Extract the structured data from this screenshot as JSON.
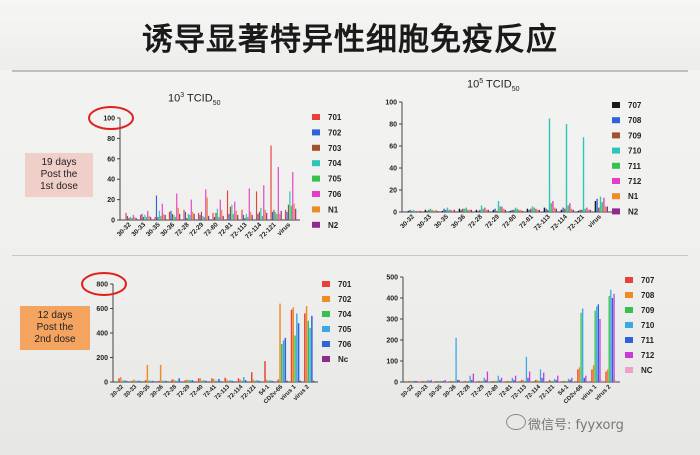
{
  "title": "诱导显著特异性细胞免疫反应",
  "panels": [
    {
      "subtitle_base": "10",
      "subtitle_sup": "3",
      "subtitle_text": " TCID",
      "subtitle_sub": "50"
    },
    {
      "subtitle_base": "10",
      "subtitle_sup": "5",
      "subtitle_text": " TCID",
      "subtitle_sub": "50"
    }
  ],
  "notes": [
    {
      "line1": "19 days",
      "line2": "Post the",
      "line3": "1st dose"
    },
    {
      "line1": "12 days",
      "line2": "Post the",
      "line3": "2nd dose"
    }
  ],
  "watermark": "微信号: fyyxorg",
  "chart_data": [
    {
      "type": "bar",
      "ylim": [
        0,
        100
      ],
      "yticks": [
        0,
        20,
        40,
        60,
        80,
        100
      ],
      "highlighted_tick": "100",
      "categories": [
        "30-32",
        "30-33",
        "30-35",
        "30-36",
        "72-28",
        "72-29",
        "72-80",
        "72-81",
        "72-113",
        "72-114",
        "72-121",
        "virus"
      ],
      "series": [
        {
          "name": "701",
          "color": "#e8413a",
          "values": [
            7,
            5,
            3,
            8,
            10,
            7,
            7,
            29,
            10,
            28,
            73,
            10
          ]
        },
        {
          "name": "702",
          "color": "#2f62d8",
          "values": [
            4,
            6,
            24,
            9,
            8,
            5,
            3,
            6,
            5,
            6,
            8,
            8
          ]
        },
        {
          "name": "703",
          "color": "#a0522d",
          "values": [
            2,
            3,
            3,
            6,
            2,
            8,
            7,
            13,
            2,
            8,
            10,
            15
          ]
        },
        {
          "name": "704",
          "color": "#2ec4b6",
          "values": [
            3,
            5,
            9,
            5,
            6,
            4,
            11,
            15,
            6,
            12,
            8,
            28
          ]
        },
        {
          "name": "705",
          "color": "#36c04c",
          "values": [
            2,
            3,
            4,
            3,
            5,
            3,
            3,
            6,
            3,
            4,
            6,
            14
          ]
        },
        {
          "name": "706",
          "color": "#e43dc8",
          "values": [
            5,
            9,
            16,
            26,
            20,
            30,
            20,
            18,
            31,
            34,
            52,
            47
          ]
        },
        {
          "name": "N1",
          "color": "#f08a24",
          "values": [
            3,
            4,
            6,
            12,
            8,
            22,
            10,
            9,
            8,
            10,
            6,
            16
          ]
        },
        {
          "name": "N2",
          "color": "#8e2c8c",
          "values": [
            2,
            3,
            5,
            6,
            6,
            4,
            4,
            5,
            5,
            7,
            9,
            11
          ]
        }
      ]
    },
    {
      "type": "bar",
      "ylim": [
        0,
        100
      ],
      "yticks": [
        0,
        20,
        40,
        60,
        80,
        100
      ],
      "categories": [
        "30-32",
        "30-33",
        "30-35",
        "30-36",
        "72-28",
        "72-29",
        "72-80",
        "72-81",
        "72-113",
        "72-114",
        "72-121",
        "virus"
      ],
      "series": [
        {
          "name": "707",
          "color": "#1a1a1a",
          "values": [
            1,
            2,
            1,
            3,
            2,
            2,
            1,
            3,
            4,
            2,
            1,
            10
          ]
        },
        {
          "name": "708",
          "color": "#2f62d8",
          "values": [
            2,
            1,
            3,
            2,
            1,
            3,
            2,
            2,
            3,
            4,
            2,
            12
          ]
        },
        {
          "name": "709",
          "color": "#a0522d",
          "values": [
            1,
            2,
            2,
            3,
            2,
            1,
            2,
            3,
            2,
            3,
            2,
            4
          ]
        },
        {
          "name": "710",
          "color": "#2ec4b6",
          "values": [
            2,
            3,
            4,
            3,
            6,
            10,
            4,
            5,
            85,
            80,
            68,
            14
          ]
        },
        {
          "name": "711",
          "color": "#36c04c",
          "values": [
            1,
            2,
            2,
            4,
            3,
            5,
            3,
            4,
            8,
            6,
            3,
            9
          ]
        },
        {
          "name": "712",
          "color": "#e43dc8",
          "values": [
            1,
            1,
            2,
            2,
            4,
            5,
            2,
            3,
            10,
            8,
            4,
            13
          ]
        },
        {
          "name": "N1",
          "color": "#f08a24",
          "values": [
            1,
            2,
            1,
            2,
            2,
            3,
            2,
            2,
            4,
            3,
            2,
            5
          ]
        },
        {
          "name": "N2",
          "color": "#8e2c8c",
          "values": [
            1,
            1,
            2,
            2,
            2,
            2,
            1,
            2,
            3,
            2,
            2,
            5
          ]
        }
      ]
    },
    {
      "type": "bar",
      "ylim": [
        0,
        800
      ],
      "yticks": [
        0,
        200,
        400,
        600,
        800
      ],
      "highlighted_tick": "800",
      "categories": [
        "30-32",
        "30-33",
        "30-35",
        "30-36",
        "72-28",
        "72-29",
        "72-40",
        "72-41",
        "72-113",
        "72-114",
        "72-121",
        "54-1",
        "CD2v-66",
        "virus 1",
        "virus 2"
      ],
      "series": [
        {
          "name": "701",
          "color": "#e8413a",
          "values": [
            30,
            10,
            15,
            10,
            20,
            15,
            30,
            30,
            35,
            30,
            80,
            170,
            20,
            590,
            560
          ]
        },
        {
          "name": "702",
          "color": "#f08a24",
          "values": [
            40,
            20,
            140,
            140,
            20,
            20,
            30,
            25,
            20,
            20,
            20,
            20,
            640,
            610,
            620
          ]
        },
        {
          "name": "704",
          "color": "#36c04c",
          "values": [
            10,
            10,
            10,
            10,
            10,
            15,
            10,
            10,
            10,
            10,
            10,
            10,
            310,
            380,
            500
          ]
        },
        {
          "name": "705",
          "color": "#3aa8e8",
          "values": [
            15,
            10,
            10,
            10,
            10,
            15,
            15,
            10,
            15,
            40,
            15,
            15,
            340,
            560,
            440
          ]
        },
        {
          "name": "706",
          "color": "#2f62d8",
          "values": [
            10,
            10,
            10,
            10,
            30,
            15,
            10,
            25,
            10,
            15,
            10,
            10,
            360,
            480,
            540
          ]
        },
        {
          "name": "Nc",
          "color": "#8e2c8c",
          "values": [
            5,
            5,
            5,
            5,
            5,
            5,
            5,
            5,
            5,
            5,
            5,
            5,
            10,
            10,
            10
          ]
        }
      ]
    },
    {
      "type": "bar",
      "ylim": [
        0,
        500
      ],
      "yticks": [
        0,
        100,
        200,
        300,
        400,
        500
      ],
      "categories": [
        "30-32",
        "30-33",
        "30-35",
        "30-36",
        "72-28",
        "72-29",
        "72-80",
        "72-81",
        "72-113",
        "72-114",
        "72-121",
        "54-1",
        "CD2v-66",
        "virus 1",
        "virus 2"
      ],
      "series": [
        {
          "name": "707",
          "color": "#e8413a",
          "values": [
            5,
            5,
            5,
            5,
            5,
            5,
            5,
            5,
            10,
            10,
            10,
            5,
            60,
            60,
            50
          ]
        },
        {
          "name": "708",
          "color": "#f08a24",
          "values": [
            5,
            5,
            5,
            5,
            5,
            5,
            5,
            5,
            10,
            10,
            5,
            5,
            70,
            80,
            60
          ]
        },
        {
          "name": "709",
          "color": "#36c04c",
          "values": [
            5,
            5,
            5,
            5,
            5,
            5,
            5,
            5,
            5,
            5,
            5,
            5,
            330,
            340,
            410
          ]
        },
        {
          "name": "710",
          "color": "#3aa8e8",
          "values": [
            5,
            10,
            5,
            210,
            30,
            20,
            30,
            20,
            120,
            60,
            15,
            15,
            350,
            360,
            440
          ]
        },
        {
          "name": "711",
          "color": "#2f62d8",
          "values": [
            5,
            5,
            5,
            10,
            10,
            10,
            10,
            10,
            20,
            20,
            10,
            10,
            20,
            370,
            400
          ]
        },
        {
          "name": "712",
          "color": "#c93ad6",
          "values": [
            5,
            10,
            10,
            10,
            40,
            50,
            20,
            30,
            50,
            45,
            30,
            20,
            30,
            300,
            420
          ]
        },
        {
          "name": "NC",
          "color": "#f3a0c8",
          "values": [
            5,
            5,
            5,
            5,
            5,
            5,
            5,
            5,
            5,
            5,
            5,
            5,
            5,
            10,
            10
          ]
        }
      ]
    }
  ]
}
